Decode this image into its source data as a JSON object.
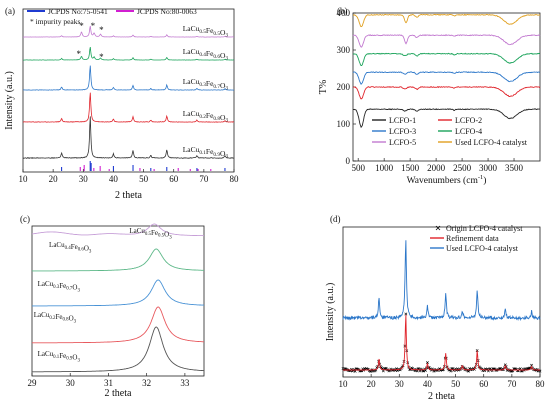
{
  "chart_data": [
    {
      "panel": "(a)",
      "type": "line",
      "xlabel": "2 theta",
      "ylabel": "Intensity (a.u.)",
      "xlim": [
        10,
        80
      ],
      "xticks": [
        10,
        20,
        30,
        40,
        50,
        60,
        70,
        80
      ],
      "legend": [
        {
          "name": "JCPDS No:75-0541",
          "color": "#1f3bd1"
        },
        {
          "name": "JCPDS No:80-0063",
          "color": "#d11fd1"
        }
      ],
      "annotation": "* impurity peaks",
      "peaks": [
        22.8,
        32.3,
        40.0,
        46.5,
        52.4,
        57.7,
        67.7,
        77.0
      ],
      "impurity_peaks": [
        29.4,
        33.6,
        35.7
      ],
      "series": [
        {
          "name": "LaCu0.5Fe0.5O3",
          "base": "LaCu",
          "sub1": "0.5",
          "mid": "Fe",
          "sub2": "0.5",
          "tail": "O",
          "sub3": "3",
          "color": "#c27ad0",
          "impurity": 1.0
        },
        {
          "name": "LaCu0.4Fe0.6O3",
          "base": "LaCu",
          "sub1": "0.4",
          "mid": "Fe",
          "sub2": "0.6",
          "tail": "O",
          "sub3": "3",
          "color": "#1aa35a",
          "impurity": 0.6
        },
        {
          "name": "LaCu0.3Fe0.7O3",
          "base": "LaCu",
          "sub1": "0.3",
          "mid": "Fe",
          "sub2": "0.7",
          "tail": "O",
          "sub3": "3",
          "color": "#2c77c9",
          "impurity": 0
        },
        {
          "name": "LaCu0.2Fe0.8O3",
          "base": "LaCu",
          "sub1": "0.2",
          "mid": "Fe",
          "sub2": "0.8",
          "tail": "O",
          "sub3": "3",
          "color": "#e0232a",
          "impurity": 0
        },
        {
          "name": "LaCu0.1Fe0.9O3",
          "base": "LaCu",
          "sub1": "0.1",
          "mid": "Fe",
          "sub2": "0.9",
          "tail": "O",
          "sub3": "3",
          "color": "#333333",
          "impurity": 0
        }
      ],
      "ref_lines": {
        "blue": [
          22.8,
          32.3,
          32.6,
          40.0,
          46.5,
          52.4,
          57.7,
          67.7,
          77.0
        ],
        "magenta": [
          29.0,
          30.3,
          33.5,
          35.6,
          38.6,
          48.8,
          53.5,
          61.5,
          65.5,
          68.1,
          72.3
        ]
      }
    },
    {
      "panel": "(b)",
      "type": "line",
      "xlabel": "Wavenumbers (cm-1)",
      "xlabel_main": "Wavenumbers (cm",
      "xlabel_sup": "-1",
      "xlabel_end": ")",
      "ylabel": "T%",
      "xlim": [
        400,
        4000
      ],
      "xticks": [
        500,
        1000,
        1500,
        2000,
        2500,
        3000,
        3500
      ],
      "ylim": [
        0,
        400
      ],
      "yticks": [
        0,
        100,
        200,
        300,
        400
      ],
      "legend": [
        "LCFO-1",
        "LCFO-2",
        "LCFO-3",
        "LCFO-4",
        "LCFO-5",
        "Used LCFO-4 catalyst"
      ],
      "series": [
        {
          "name": "LCFO-1",
          "color": "#222222",
          "offset": 140
        },
        {
          "name": "LCFO-2",
          "color": "#e0232a",
          "offset": 200
        },
        {
          "name": "LCFO-3",
          "color": "#2c77c9",
          "offset": 240
        },
        {
          "name": "LCFO-4",
          "color": "#1aa35a",
          "offset": 290
        },
        {
          "name": "LCFO-5",
          "color": "#c27ad0",
          "offset": 340
        },
        {
          "name": "Used LCFO-4 catalyst",
          "color": "#e0a020",
          "offset": 395
        }
      ]
    },
    {
      "panel": "(c)",
      "type": "line",
      "xlabel": "2 theta",
      "xlim": [
        29,
        33.5
      ],
      "xticks": [
        29,
        30,
        31,
        32,
        33
      ],
      "series": [
        {
          "name": "LaCu0.5Fe0.5O3",
          "base": "LaCu",
          "sub1": "0.5",
          "mid": "Fe",
          "sub2": "0.5",
          "tail": "O",
          "sub3": "3",
          "color": "#c7a0d8",
          "peak": 32.2
        },
        {
          "name": "LaCu0.4Fe0.6O3",
          "base": "LaCu",
          "sub1": "0.4",
          "mid": "Fe",
          "sub2": "0.6",
          "tail": "O",
          "sub3": "3",
          "color": "#5fb98a",
          "peak": 32.25
        },
        {
          "name": "LaCu0.3Fe0.7O3",
          "base": "LaCu",
          "sub1": "0.3",
          "mid": "Fe",
          "sub2": "0.7",
          "tail": "O",
          "sub3": "3",
          "color": "#4a93d6",
          "peak": 32.3
        },
        {
          "name": "LaCu0.2Fe0.8O3",
          "base": "LaCu",
          "sub1": "0.2",
          "mid": "Fe",
          "sub2": "0.8",
          "tail": "O",
          "sub3": "3",
          "color": "#e85a5f",
          "peak": 32.3
        },
        {
          "name": "LaCu0.1Fe0.9O3",
          "base": "LaCu",
          "sub1": "0.1",
          "mid": "Fe",
          "sub2": "0.9",
          "tail": "O",
          "sub3": "3",
          "color": "#555555",
          "peak": 32.25
        }
      ]
    },
    {
      "panel": "(d)",
      "type": "line",
      "xlabel": "2 theta",
      "ylabel": "Intensity (a.u.)",
      "xlim": [
        10,
        80
      ],
      "xticks": [
        10,
        20,
        30,
        40,
        50,
        60,
        70,
        80
      ],
      "legend": [
        {
          "name": "Origin LCFO-4 catalyst",
          "marker": "x",
          "color": "#000000"
        },
        {
          "name": "Refinement data",
          "color": "#e0232a"
        },
        {
          "name": "Used LCFO-4 catalyst",
          "color": "#2c77c9"
        }
      ],
      "peaks": [
        22.8,
        32.3,
        40.0,
        46.5,
        52.4,
        57.7,
        67.7,
        77.0
      ]
    }
  ]
}
